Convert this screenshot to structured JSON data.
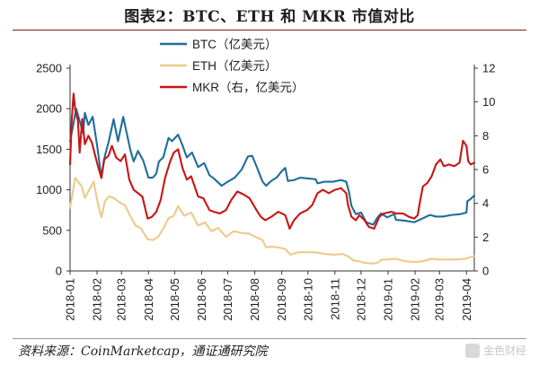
{
  "figure": {
    "title": "图表2：BTC、ETH 和 MKR 市值对比",
    "source": "资料来源：CoinMarketcap，通证通研究院",
    "watermark": "金色财经"
  },
  "chart_data": {
    "type": "line",
    "x_labels": [
      "2018-01",
      "2018-02",
      "2018-03",
      "2018-04",
      "2018-05",
      "2018-06",
      "2018-07",
      "2018-08",
      "2018-09",
      "2018-10",
      "2018-11",
      "2018-12",
      "2019-01",
      "2019-02",
      "2019-03",
      "2019-04"
    ],
    "x_range": [
      "2018-01-01",
      "2019-04-10"
    ],
    "y_left": {
      "min": 0,
      "max": 2500,
      "ticks": [
        0,
        500,
        1000,
        1500,
        2000,
        2500
      ]
    },
    "y_right": {
      "min": 0,
      "max": 12,
      "ticks": [
        0,
        2,
        4,
        6,
        8,
        10,
        12
      ]
    },
    "legend_position": "top-left",
    "series": [
      {
        "name": "BTC（亿美元）",
        "axis": "left",
        "color": "#1f6e99",
        "points": [
          [
            "2018-01-01",
            1600
          ],
          [
            "2018-01-05",
            1820
          ],
          [
            "2018-01-08",
            2000
          ],
          [
            "2018-01-12",
            1850
          ],
          [
            "2018-01-16",
            1700
          ],
          [
            "2018-01-18",
            1950
          ],
          [
            "2018-01-22",
            1800
          ],
          [
            "2018-01-27",
            1900
          ],
          [
            "2018-02-01",
            1550
          ],
          [
            "2018-02-06",
            1150
          ],
          [
            "2018-02-10",
            1420
          ],
          [
            "2018-02-14",
            1580
          ],
          [
            "2018-02-20",
            1870
          ],
          [
            "2018-02-25",
            1600
          ],
          [
            "2018-03-03",
            1900
          ],
          [
            "2018-03-06",
            1750
          ],
          [
            "2018-03-11",
            1500
          ],
          [
            "2018-03-15",
            1350
          ],
          [
            "2018-03-20",
            1480
          ],
          [
            "2018-03-26",
            1360
          ],
          [
            "2018-04-01",
            1150
          ],
          [
            "2018-04-06",
            1150
          ],
          [
            "2018-04-10",
            1200
          ],
          [
            "2018-04-13",
            1350
          ],
          [
            "2018-04-18",
            1400
          ],
          [
            "2018-04-24",
            1640
          ],
          [
            "2018-04-28",
            1600
          ],
          [
            "2018-05-05",
            1680
          ],
          [
            "2018-05-10",
            1550
          ],
          [
            "2018-05-15",
            1400
          ],
          [
            "2018-05-21",
            1460
          ],
          [
            "2018-05-28",
            1280
          ],
          [
            "2018-06-04",
            1330
          ],
          [
            "2018-06-10",
            1180
          ],
          [
            "2018-06-15",
            1140
          ],
          [
            "2018-06-24",
            1050
          ],
          [
            "2018-07-01",
            1100
          ],
          [
            "2018-07-09",
            1150
          ],
          [
            "2018-07-17",
            1250
          ],
          [
            "2018-07-24",
            1410
          ],
          [
            "2018-07-29",
            1420
          ],
          [
            "2018-08-03",
            1290
          ],
          [
            "2018-08-10",
            1100
          ],
          [
            "2018-08-14",
            1050
          ],
          [
            "2018-08-20",
            1110
          ],
          [
            "2018-08-26",
            1150
          ],
          [
            "2018-09-01",
            1230
          ],
          [
            "2018-09-05",
            1270
          ],
          [
            "2018-09-08",
            1110
          ],
          [
            "2018-09-15",
            1120
          ],
          [
            "2018-09-22",
            1150
          ],
          [
            "2018-10-01",
            1140
          ],
          [
            "2018-10-10",
            1130
          ],
          [
            "2018-10-12",
            1080
          ],
          [
            "2018-10-20",
            1100
          ],
          [
            "2018-10-30",
            1100
          ],
          [
            "2018-11-08",
            1120
          ],
          [
            "2018-11-14",
            1100
          ],
          [
            "2018-11-17",
            980
          ],
          [
            "2018-11-20",
            800
          ],
          [
            "2018-11-25",
            700
          ],
          [
            "2018-12-01",
            720
          ],
          [
            "2018-12-07",
            600
          ],
          [
            "2018-12-15",
            570
          ],
          [
            "2018-12-20",
            660
          ],
          [
            "2018-12-24",
            710
          ],
          [
            "2018-12-31",
            660
          ],
          [
            "2019-01-08",
            700
          ],
          [
            "2019-01-10",
            630
          ],
          [
            "2019-01-20",
            620
          ],
          [
            "2019-01-31",
            600
          ],
          [
            "2019-02-08",
            640
          ],
          [
            "2019-02-18",
            690
          ],
          [
            "2019-02-25",
            670
          ],
          [
            "2019-03-05",
            670
          ],
          [
            "2019-03-15",
            690
          ],
          [
            "2019-03-25",
            700
          ],
          [
            "2019-04-01",
            720
          ],
          [
            "2019-04-02",
            860
          ],
          [
            "2019-04-05",
            880
          ],
          [
            "2019-04-10",
            930
          ]
        ]
      },
      {
        "name": "ETH（亿美元）",
        "axis": "left",
        "color": "#eec98b",
        "points": [
          [
            "2018-01-01",
            780
          ],
          [
            "2018-01-07",
            1150
          ],
          [
            "2018-01-10",
            1100
          ],
          [
            "2018-01-14",
            1050
          ],
          [
            "2018-01-18",
            900
          ],
          [
            "2018-01-23",
            1000
          ],
          [
            "2018-01-28",
            1100
          ],
          [
            "2018-02-02",
            830
          ],
          [
            "2018-02-06",
            660
          ],
          [
            "2018-02-10",
            860
          ],
          [
            "2018-02-15",
            920
          ],
          [
            "2018-02-20",
            900
          ],
          [
            "2018-02-26",
            850
          ],
          [
            "2018-03-05",
            810
          ],
          [
            "2018-03-10",
            700
          ],
          [
            "2018-03-17",
            560
          ],
          [
            "2018-03-23",
            530
          ],
          [
            "2018-03-31",
            390
          ],
          [
            "2018-04-06",
            380
          ],
          [
            "2018-04-12",
            420
          ],
          [
            "2018-04-18",
            520
          ],
          [
            "2018-04-24",
            650
          ],
          [
            "2018-04-30",
            680
          ],
          [
            "2018-05-05",
            800
          ],
          [
            "2018-05-12",
            680
          ],
          [
            "2018-05-20",
            720
          ],
          [
            "2018-05-28",
            560
          ],
          [
            "2018-06-05",
            600
          ],
          [
            "2018-06-12",
            490
          ],
          [
            "2018-06-20",
            530
          ],
          [
            "2018-06-29",
            420
          ],
          [
            "2018-07-08",
            490
          ],
          [
            "2018-07-16",
            470
          ],
          [
            "2018-07-25",
            460
          ],
          [
            "2018-08-02",
            420
          ],
          [
            "2018-08-10",
            380
          ],
          [
            "2018-08-14",
            290
          ],
          [
            "2018-08-20",
            300
          ],
          [
            "2018-08-28",
            290
          ],
          [
            "2018-09-05",
            270
          ],
          [
            "2018-09-11",
            200
          ],
          [
            "2018-09-20",
            230
          ],
          [
            "2018-09-28",
            230
          ],
          [
            "2018-10-08",
            230
          ],
          [
            "2018-10-20",
            210
          ],
          [
            "2018-10-31",
            200
          ],
          [
            "2018-11-10",
            210
          ],
          [
            "2018-11-16",
            180
          ],
          [
            "2018-11-22",
            130
          ],
          [
            "2018-11-28",
            120
          ],
          [
            "2018-12-05",
            100
          ],
          [
            "2018-12-14",
            90
          ],
          [
            "2018-12-20",
            100
          ],
          [
            "2018-12-25",
            140
          ],
          [
            "2019-01-01",
            140
          ],
          [
            "2019-01-10",
            150
          ],
          [
            "2019-01-20",
            120
          ],
          [
            "2019-01-31",
            110
          ],
          [
            "2019-02-10",
            120
          ],
          [
            "2019-02-20",
            150
          ],
          [
            "2019-02-28",
            140
          ],
          [
            "2019-03-10",
            140
          ],
          [
            "2019-03-20",
            140
          ],
          [
            "2019-03-31",
            150
          ],
          [
            "2019-04-05",
            170
          ],
          [
            "2019-04-10",
            180
          ]
        ]
      },
      {
        "name": "MKR（右，亿美元）",
        "axis": "right",
        "color": "#c81515",
        "points": [
          [
            "2018-01-01",
            6.3
          ],
          [
            "2018-01-03",
            9.0
          ],
          [
            "2018-01-05",
            10.5
          ],
          [
            "2018-01-07",
            9.5
          ],
          [
            "2018-01-10",
            8.9
          ],
          [
            "2018-01-12",
            7.0
          ],
          [
            "2018-01-15",
            9.0
          ],
          [
            "2018-01-18",
            7.5
          ],
          [
            "2018-01-22",
            8.0
          ],
          [
            "2018-01-26",
            7.6
          ],
          [
            "2018-02-02",
            6.2
          ],
          [
            "2018-02-06",
            5.5
          ],
          [
            "2018-02-09",
            6.6
          ],
          [
            "2018-02-14",
            6.8
          ],
          [
            "2018-02-18",
            7.4
          ],
          [
            "2018-02-23",
            6.7
          ],
          [
            "2018-02-28",
            6.5
          ],
          [
            "2018-03-05",
            6.9
          ],
          [
            "2018-03-10",
            5.4
          ],
          [
            "2018-03-15",
            4.8
          ],
          [
            "2018-03-20",
            4.6
          ],
          [
            "2018-03-25",
            4.4
          ],
          [
            "2018-03-31",
            3.1
          ],
          [
            "2018-04-05",
            3.2
          ],
          [
            "2018-04-10",
            3.5
          ],
          [
            "2018-04-15",
            4.2
          ],
          [
            "2018-04-20",
            5.5
          ],
          [
            "2018-04-26",
            6.5
          ],
          [
            "2018-04-30",
            7.0
          ],
          [
            "2018-05-05",
            7.2
          ],
          [
            "2018-05-10",
            6.1
          ],
          [
            "2018-05-15",
            5.4
          ],
          [
            "2018-05-20",
            5.6
          ],
          [
            "2018-05-28",
            4.4
          ],
          [
            "2018-06-03",
            4.3
          ],
          [
            "2018-06-10",
            3.6
          ],
          [
            "2018-06-15",
            3.5
          ],
          [
            "2018-06-22",
            3.4
          ],
          [
            "2018-06-29",
            3.6
          ],
          [
            "2018-07-05",
            4.2
          ],
          [
            "2018-07-12",
            4.7
          ],
          [
            "2018-07-20",
            4.5
          ],
          [
            "2018-07-26",
            4.3
          ],
          [
            "2018-08-03",
            3.6
          ],
          [
            "2018-08-08",
            3.2
          ],
          [
            "2018-08-13",
            3.0
          ],
          [
            "2018-08-20",
            3.2
          ],
          [
            "2018-08-28",
            3.5
          ],
          [
            "2018-09-05",
            3.3
          ],
          [
            "2018-09-10",
            2.5
          ],
          [
            "2018-09-15",
            3.0
          ],
          [
            "2018-09-22",
            3.4
          ],
          [
            "2018-09-30",
            3.6
          ],
          [
            "2018-10-06",
            3.9
          ],
          [
            "2018-10-12",
            4.6
          ],
          [
            "2018-10-18",
            4.8
          ],
          [
            "2018-10-25",
            4.6
          ],
          [
            "2018-11-01",
            4.8
          ],
          [
            "2018-11-08",
            4.9
          ],
          [
            "2018-11-14",
            4.6
          ],
          [
            "2018-11-16",
            3.9
          ],
          [
            "2018-11-20",
            3.2
          ],
          [
            "2018-11-25",
            3.0
          ],
          [
            "2018-11-29",
            3.3
          ],
          [
            "2018-12-05",
            3.0
          ],
          [
            "2018-12-10",
            2.6
          ],
          [
            "2018-12-16",
            2.5
          ],
          [
            "2018-12-22",
            3.2
          ],
          [
            "2018-12-27",
            3.4
          ],
          [
            "2019-01-05",
            3.5
          ],
          [
            "2019-01-10",
            3.4
          ],
          [
            "2019-01-18",
            3.4
          ],
          [
            "2019-01-25",
            3.2
          ],
          [
            "2019-01-31",
            3.1
          ],
          [
            "2019-02-04",
            3.3
          ],
          [
            "2019-02-07",
            4.2
          ],
          [
            "2019-02-10",
            5.0
          ],
          [
            "2019-02-15",
            5.2
          ],
          [
            "2019-02-20",
            5.6
          ],
          [
            "2019-02-25",
            6.3
          ],
          [
            "2019-03-02",
            6.6
          ],
          [
            "2019-03-06",
            6.2
          ],
          [
            "2019-03-12",
            6.3
          ],
          [
            "2019-03-18",
            6.2
          ],
          [
            "2019-03-24",
            6.4
          ],
          [
            "2019-03-28",
            7.7
          ],
          [
            "2019-04-01",
            7.4
          ],
          [
            "2019-04-03",
            6.5
          ],
          [
            "2019-04-06",
            6.3
          ],
          [
            "2019-04-10",
            6.4
          ]
        ]
      }
    ]
  }
}
